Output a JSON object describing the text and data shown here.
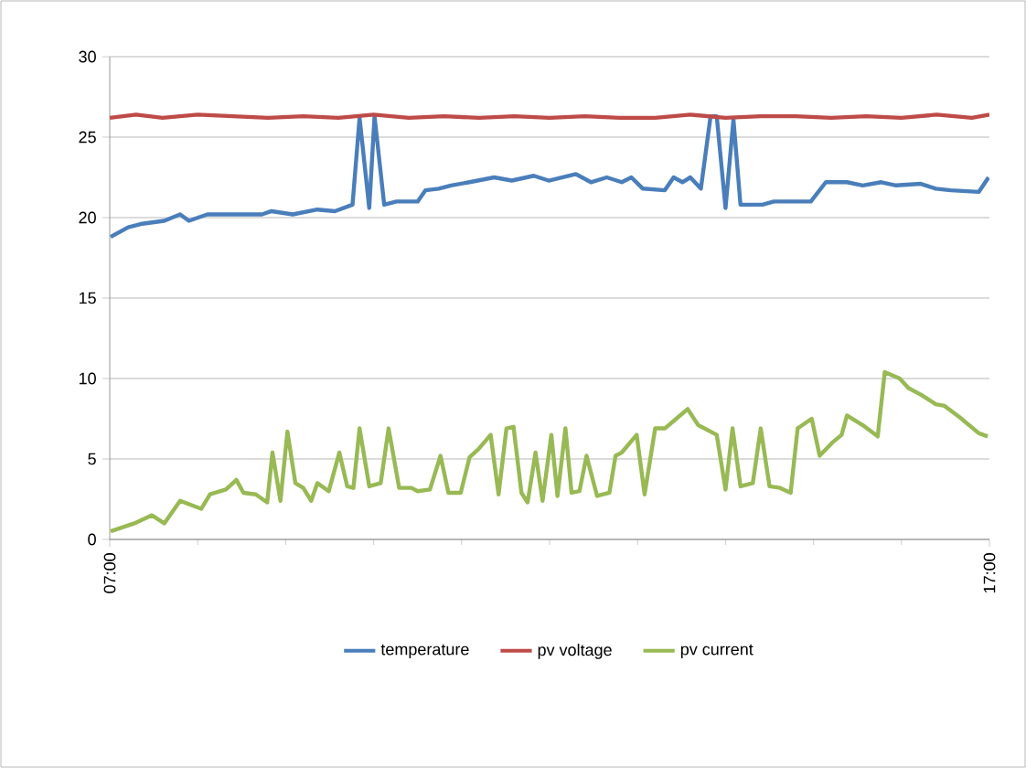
{
  "chart_data": {
    "type": "line",
    "xlim": [
      7,
      17
    ],
    "xticks": [
      {
        "value": 7,
        "label": "07:00"
      },
      {
        "value": 17,
        "label": "17:00"
      }
    ],
    "ylim": [
      0,
      30
    ],
    "yticks": [
      0,
      5,
      10,
      15,
      20,
      25,
      30
    ],
    "grid": "y",
    "legend": "bottom",
    "marker": "none",
    "line_style": "solid",
    "series": [
      {
        "name": "temperature",
        "color": "#4a7ebb",
        "x": [
          7.01,
          7.21,
          7.35,
          7.62,
          7.8,
          7.9,
          8.11,
          8.39,
          8.73,
          8.84,
          9.08,
          9.36,
          9.56,
          9.76,
          9.84,
          9.95,
          10.01,
          10.12,
          10.26,
          10.5,
          10.59,
          10.74,
          10.88,
          11.09,
          11.37,
          11.57,
          11.82,
          11.99,
          12.3,
          12.47,
          12.65,
          12.82,
          12.93,
          13.06,
          13.31,
          13.41,
          13.51,
          13.6,
          13.72,
          13.83,
          13.9,
          14.0,
          14.09,
          14.17,
          14.42,
          14.55,
          14.97,
          15.14,
          15.38,
          15.56,
          15.77,
          15.94,
          16.22,
          16.39,
          16.56,
          16.88,
          16.99
        ],
        "values": [
          18.8,
          19.4,
          19.6,
          19.8,
          20.2,
          19.8,
          20.2,
          20.2,
          20.2,
          20.4,
          20.2,
          20.5,
          20.4,
          20.8,
          26.2,
          20.6,
          26.3,
          20.8,
          21.0,
          21.0,
          21.7,
          21.8,
          22.0,
          22.2,
          22.5,
          22.3,
          22.6,
          22.3,
          22.7,
          22.2,
          22.5,
          22.2,
          22.5,
          21.8,
          21.7,
          22.5,
          22.2,
          22.5,
          21.8,
          26.3,
          26.3,
          20.6,
          26.1,
          20.8,
          20.8,
          21.0,
          21.0,
          22.2,
          22.2,
          22.0,
          22.2,
          22.0,
          22.1,
          21.8,
          21.7,
          21.6,
          22.5
        ]
      },
      {
        "name": "pv voltage",
        "color": "#be4b48",
        "x": [
          7.0,
          7.3,
          7.6,
          8.0,
          8.4,
          8.8,
          9.2,
          9.6,
          10.0,
          10.4,
          10.8,
          11.2,
          11.6,
          12.0,
          12.4,
          12.8,
          13.2,
          13.6,
          14.0,
          14.4,
          14.8,
          15.2,
          15.6,
          16.0,
          16.4,
          16.8,
          17.0
        ],
        "values": [
          26.2,
          26.4,
          26.2,
          26.4,
          26.3,
          26.2,
          26.3,
          26.2,
          26.4,
          26.2,
          26.3,
          26.2,
          26.3,
          26.2,
          26.3,
          26.2,
          26.2,
          26.4,
          26.2,
          26.3,
          26.3,
          26.2,
          26.3,
          26.2,
          26.4,
          26.2,
          26.4
        ]
      },
      {
        "name": "pv current",
        "color": "#98b954",
        "x": [
          7.01,
          7.28,
          7.48,
          7.62,
          7.8,
          8.04,
          8.14,
          8.32,
          8.44,
          8.52,
          8.66,
          8.79,
          8.85,
          8.94,
          9.02,
          9.11,
          9.2,
          9.29,
          9.36,
          9.49,
          9.61,
          9.7,
          9.77,
          9.84,
          9.95,
          10.08,
          10.17,
          10.29,
          10.43,
          10.5,
          10.64,
          10.76,
          10.85,
          10.99,
          11.09,
          11.19,
          11.33,
          11.42,
          11.51,
          11.59,
          11.68,
          11.75,
          11.84,
          11.92,
          12.02,
          12.09,
          12.18,
          12.25,
          12.34,
          12.42,
          12.54,
          12.68,
          12.75,
          12.82,
          12.99,
          13.08,
          13.2,
          13.31,
          13.44,
          13.57,
          13.69,
          13.9,
          14.0,
          14.08,
          14.17,
          14.31,
          14.4,
          14.5,
          14.62,
          14.74,
          14.82,
          14.98,
          15.07,
          15.21,
          15.32,
          15.38,
          15.56,
          15.73,
          15.81,
          15.98,
          16.08,
          16.22,
          16.39,
          16.49,
          16.66,
          16.88,
          16.98
        ],
        "values": [
          0.5,
          1.0,
          1.5,
          1.0,
          2.4,
          1.9,
          2.8,
          3.1,
          3.7,
          2.9,
          2.8,
          2.3,
          5.4,
          2.4,
          6.7,
          3.5,
          3.2,
          2.4,
          3.5,
          3.0,
          5.4,
          3.3,
          3.2,
          6.9,
          3.3,
          3.5,
          6.9,
          3.2,
          3.2,
          3.0,
          3.1,
          5.2,
          2.9,
          2.9,
          5.1,
          5.6,
          6.5,
          2.8,
          6.9,
          7.0,
          2.9,
          2.3,
          5.4,
          2.4,
          6.5,
          2.7,
          6.9,
          2.9,
          3.0,
          5.2,
          2.7,
          2.9,
          5.2,
          5.4,
          6.5,
          2.8,
          6.9,
          6.9,
          7.5,
          8.1,
          7.1,
          6.5,
          3.1,
          6.9,
          3.3,
          3.5,
          6.9,
          3.3,
          3.2,
          2.9,
          6.9,
          7.5,
          5.2,
          6.0,
          6.5,
          7.7,
          7.1,
          6.4,
          10.4,
          10.0,
          9.4,
          9.0,
          8.4,
          8.3,
          7.6,
          6.6,
          6.4
        ]
      }
    ]
  }
}
